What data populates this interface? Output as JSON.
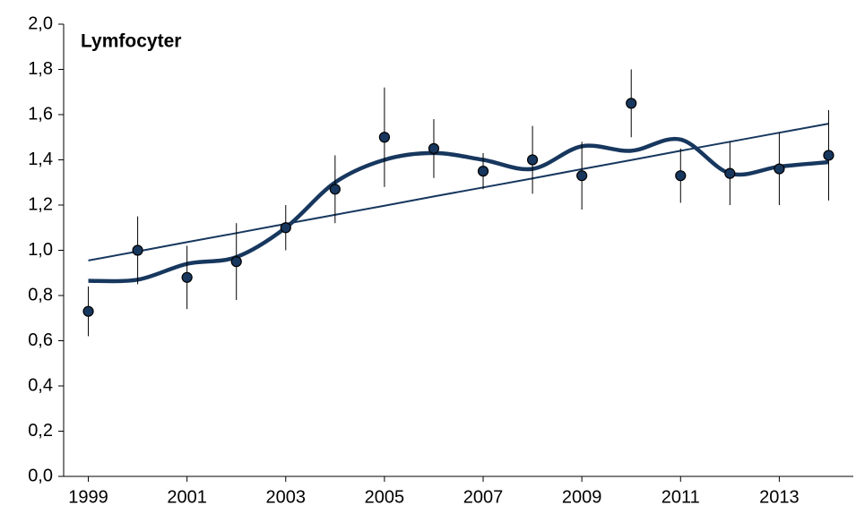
{
  "chart_data": {
    "type": "scatter",
    "title": "Lymfocyter",
    "x": [
      1999,
      2000,
      2001,
      2002,
      2003,
      2004,
      2005,
      2006,
      2007,
      2008,
      2009,
      2010,
      2011,
      2012,
      2013,
      2014
    ],
    "series": [
      {
        "kind": "points",
        "color": "#17375e",
        "values": [
          0.73,
          1.0,
          0.88,
          0.95,
          1.1,
          1.27,
          1.5,
          1.45,
          1.35,
          1.4,
          1.33,
          1.65,
          1.33,
          1.34,
          1.36,
          1.42
        ],
        "errors": [
          0.11,
          0.15,
          0.14,
          0.17,
          0.1,
          0.15,
          0.22,
          0.13,
          0.08,
          0.15,
          0.15,
          0.15,
          0.12,
          0.14,
          0.16,
          0.2
        ]
      },
      {
        "kind": "smooth",
        "color": "#17375e",
        "values": [
          0.865,
          0.87,
          0.94,
          0.97,
          1.1,
          1.3,
          1.4,
          1.43,
          1.4,
          1.36,
          1.46,
          1.44,
          1.49,
          1.34,
          1.37,
          1.39
        ]
      },
      {
        "kind": "trend",
        "color": "#17375e",
        "values": [
          0.955,
          0.995,
          1.036,
          1.076,
          1.117,
          1.157,
          1.197,
          1.238,
          1.278,
          1.318,
          1.359,
          1.399,
          1.44,
          1.48,
          1.52,
          1.56
        ]
      }
    ],
    "xlim": [
      1998.5,
      2014.5
    ],
    "xticks": [
      1999,
      2001,
      2003,
      2005,
      2007,
      2009,
      2011,
      2013
    ],
    "ylim": [
      0,
      2
    ],
    "yticks": [
      {
        "value": 0,
        "label": "0,0"
      },
      {
        "value": 0.2,
        "label": "0,2"
      },
      {
        "value": 0.4,
        "label": "0,4"
      },
      {
        "value": 0.6,
        "label": "0,6"
      },
      {
        "value": 0.8,
        "label": "0,8"
      },
      {
        "value": 1,
        "label": "1,0"
      },
      {
        "value": 1.2,
        "label": "1,2"
      },
      {
        "value": 1.4,
        "label": "1,4"
      },
      {
        "value": 1.6,
        "label": "1,6"
      },
      {
        "value": 1.8,
        "label": "1,8"
      },
      {
        "value": 2,
        "label": "2,0"
      }
    ]
  }
}
